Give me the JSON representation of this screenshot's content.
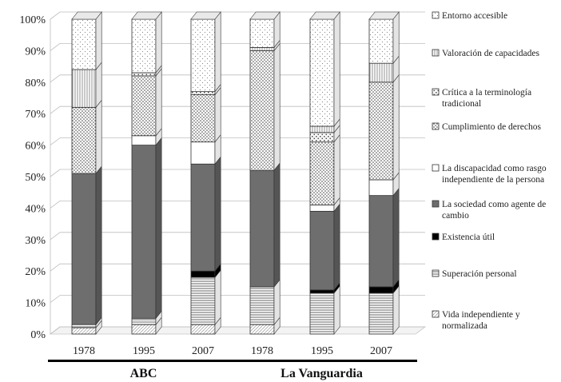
{
  "chart_data": {
    "type": "bar",
    "stacked": true,
    "percent": true,
    "y_ticks": [
      "0%",
      "10%",
      "20%",
      "30%",
      "40%",
      "50%",
      "60%",
      "70%",
      "80%",
      "90%",
      "100%"
    ],
    "ylim": [
      0,
      100
    ],
    "categories": [
      "1978",
      "1995",
      "2007",
      "1978",
      "1995",
      "2007"
    ],
    "groups": [
      {
        "label": "ABC",
        "categories": [
          0,
          1,
          2
        ]
      },
      {
        "label": "La Vanguardia",
        "categories": [
          3,
          4,
          5
        ]
      }
    ],
    "legend_position": "right",
    "series": [
      {
        "name": "Vida independiente y normalizada",
        "key": "vida",
        "values": [
          2,
          3,
          3,
          3,
          0,
          0
        ]
      },
      {
        "name": "Superación personal",
        "key": "superacion",
        "values": [
          1,
          2,
          15,
          12,
          13,
          13
        ]
      },
      {
        "name": "Existencia útil",
        "key": "existencia",
        "values": [
          0,
          0,
          2,
          0,
          1,
          2
        ]
      },
      {
        "name": "La sociedad como agente de cambio",
        "key": "sociedad",
        "values": [
          48,
          55,
          34,
          37,
          25,
          29
        ]
      },
      {
        "name": "La discapacidad como rasgo independiente de la persona",
        "key": "discapacidad",
        "values": [
          0,
          3,
          7,
          0,
          2,
          5
        ]
      },
      {
        "name": "Cumplimiento de derechos",
        "key": "cumplimiento",
        "values": [
          21,
          19,
          15,
          38,
          20,
          31
        ]
      },
      {
        "name": "Crítica a la terminología tradicional",
        "key": "critica",
        "values": [
          0,
          1,
          1,
          0,
          3,
          0
        ]
      },
      {
        "name": "Valoración de capacidades",
        "key": "valoracion",
        "values": [
          12,
          0,
          0,
          1,
          2,
          6
        ]
      },
      {
        "name": "Entorno accesible",
        "key": "entorno",
        "values": [
          16,
          17,
          23,
          9,
          34,
          14
        ]
      }
    ],
    "legend_lines": {
      "entorno": [
        "Entorno accesible"
      ],
      "valoracion": [
        "Valoración de capacidades"
      ],
      "critica": [
        "Crítica a la terminología",
        "tradicional"
      ],
      "cumplimiento": [
        "Cumplimiento de derechos"
      ],
      "discapacidad": [
        "La discapacidad como rasgo",
        "independiente de la persona"
      ],
      "sociedad": [
        "La sociedad como agente de",
        "cambio"
      ],
      "existencia": [
        "Existencia útil"
      ],
      "superacion": [
        "Superación personal"
      ],
      "vida": [
        "Vida independiente y",
        "normalizada"
      ]
    },
    "colors": {
      "vida": "#ffffff",
      "superacion": "#ffffff",
      "existencia": "#000000",
      "sociedad": "#6e6e6e",
      "discapacidad": "#ffffff",
      "cumplimiento": "#ffffff",
      "critica": "#ffffff",
      "valoracion": "#ffffff",
      "entorno": "#ffffff"
    }
  }
}
